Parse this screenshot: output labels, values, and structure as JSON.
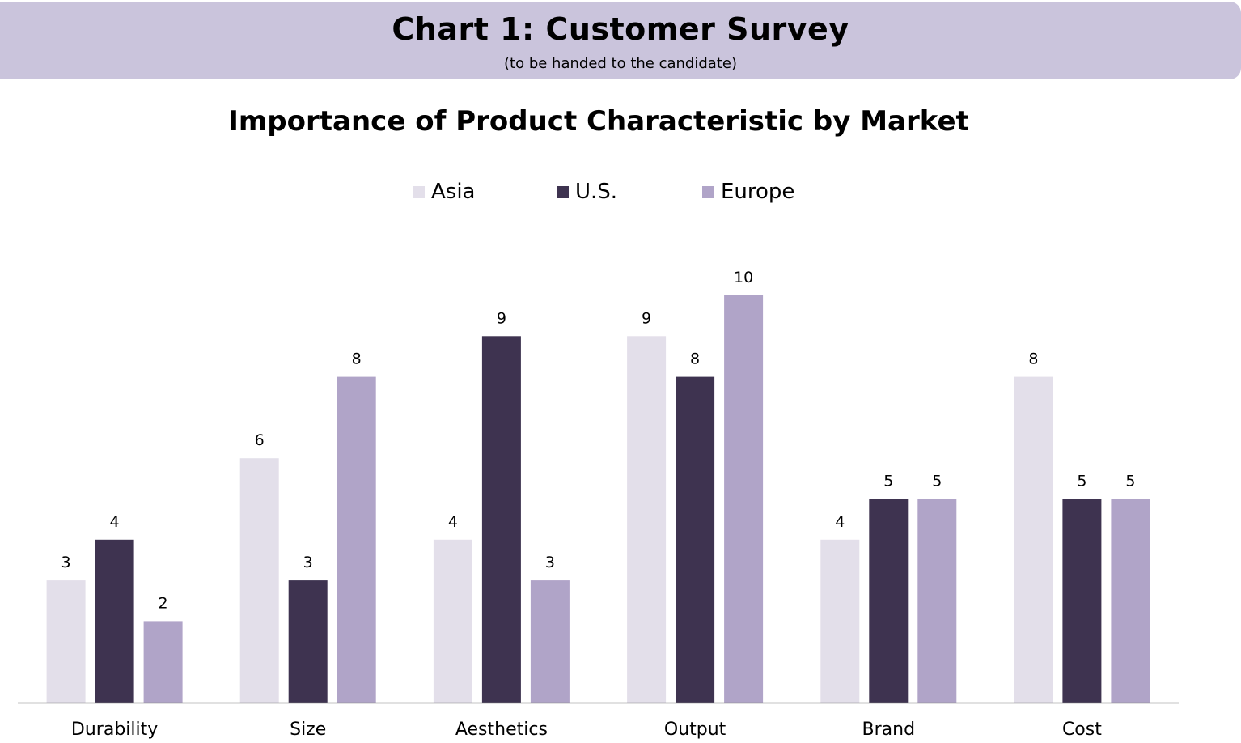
{
  "header": {
    "title": "Chart 1: Customer Survey",
    "subtitle": "(to be handed to the candidate)"
  },
  "colors": {
    "banner": "#cac4dc",
    "asia": "#e3dfea",
    "us": "#3e3350",
    "europe": "#b0a4c8",
    "axis": "#888888"
  },
  "chart_data": {
    "type": "bar",
    "title": "Importance of Product Characteristic by Market",
    "categories": [
      "Durability",
      "Size",
      "Aesthetics",
      "Output",
      "Brand",
      "Cost"
    ],
    "series": [
      {
        "name": "Asia",
        "color": "#e3dfea",
        "values": [
          3,
          6,
          4,
          9,
          4,
          8
        ]
      },
      {
        "name": "U.S.",
        "color": "#3e3350",
        "values": [
          4,
          3,
          9,
          8,
          5,
          5
        ]
      },
      {
        "name": "Europe",
        "color": "#b0a4c8",
        "values": [
          2,
          8,
          3,
          10,
          5,
          5
        ]
      }
    ],
    "xlabel": "",
    "ylabel": "",
    "ylim": [
      0,
      10
    ],
    "grid": false,
    "legend_position": "top-center",
    "data_labels": true
  }
}
